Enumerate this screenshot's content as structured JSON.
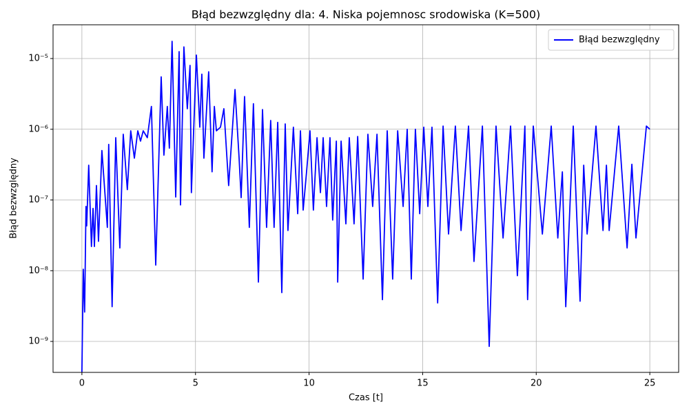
{
  "chart_data": {
    "type": "line",
    "title": "Błąd bezwzględny dla: 4. Niska pojemnosc srodowiska (K=500)",
    "xlabel": "Czas [t]",
    "ylabel": "Błąd bezwzględny",
    "log_y": true,
    "grid": true,
    "legend": "upper right",
    "xlim": [
      -1.27,
      26.27
    ],
    "ylim": [
      3.65e-10,
      3e-05
    ],
    "xticks": [
      0,
      5,
      10,
      15,
      20,
      25
    ],
    "yticks": [
      {
        "value": 1e-09,
        "label": "10⁻⁹"
      },
      {
        "value": 1e-08,
        "label": "10⁻⁸"
      },
      {
        "value": 1e-07,
        "label": "10⁻⁷"
      },
      {
        "value": 1e-06,
        "label": "10⁻⁶"
      },
      {
        "value": 1e-05,
        "label": "10⁻⁵"
      }
    ],
    "x": [
      0,
      0.06,
      0.12,
      0.18,
      0.21,
      0.3,
      0.42,
      0.49,
      0.55,
      0.64,
      0.73,
      0.88,
      1.12,
      1.18,
      1.33,
      1.49,
      1.67,
      1.82,
      2.0,
      2.15,
      2.31,
      2.46,
      2.58,
      2.7,
      2.88,
      3.06,
      3.25,
      3.49,
      3.61,
      3.76,
      3.85,
      3.97,
      4.13,
      4.28,
      4.34,
      4.49,
      4.64,
      4.76,
      4.82,
      5.04,
      5.19,
      5.28,
      5.37,
      5.58,
      5.73,
      5.83,
      5.92,
      6.1,
      6.25,
      6.46,
      6.74,
      6.92,
      7.01,
      7.16,
      7.37,
      7.55,
      7.77,
      7.95,
      8.13,
      8.31,
      8.46,
      8.62,
      8.8,
      8.95,
      9.07,
      9.31,
      9.5,
      9.62,
      9.74,
      9.89,
      10.04,
      10.19,
      10.35,
      10.5,
      10.62,
      10.77,
      10.92,
      11.04,
      11.2,
      11.26,
      11.41,
      11.62,
      11.77,
      11.98,
      12.14,
      12.38,
      12.59,
      12.8,
      12.99,
      13.23,
      13.44,
      13.68,
      13.9,
      14.14,
      14.32,
      14.5,
      14.68,
      14.87,
      15.05,
      15.23,
      15.41,
      15.66,
      15.9,
      16.14,
      16.44,
      16.69,
      17.02,
      17.26,
      17.63,
      17.93,
      18.23,
      18.54,
      18.87,
      19.17,
      19.5,
      19.62,
      19.87,
      20.27,
      20.66,
      20.95,
      21.15,
      21.3,
      21.63,
      21.93,
      22.09,
      22.24,
      22.63,
      22.94,
      23.09,
      23.21,
      23.63,
      24.0,
      24.21,
      24.39,
      24.85,
      25.0
    ],
    "series": [
      {
        "name": "Błąd bezwzględny",
        "color": "#0000ff",
        "values": [
          3.7e-10,
          1.05e-08,
          2.6e-09,
          8.1e-08,
          4.3e-08,
          3.1e-07,
          2.2e-08,
          7.6e-08,
          2.2e-08,
          1.6e-07,
          2.6e-08,
          5e-07,
          4.1e-08,
          6.1e-07,
          3.1e-09,
          7.6e-07,
          2.1e-08,
          8.5e-07,
          1.4e-07,
          9.5e-07,
          3.9e-07,
          9.5e-07,
          6.8e-07,
          9.5e-07,
          7.6e-07,
          2.1e-06,
          1.2e-08,
          5.5e-06,
          4.3e-07,
          2.1e-06,
          5.4e-07,
          1.75e-05,
          1.1e-07,
          1.25e-05,
          8.5e-08,
          1.46e-05,
          1.95e-06,
          8e-06,
          1.27e-07,
          1.12e-05,
          1.07e-06,
          6e-06,
          3.9e-07,
          6.5e-06,
          2.5e-07,
          2.1e-06,
          9.5e-07,
          1.07e-06,
          1.95e-06,
          1.6e-07,
          3.65e-06,
          3.9e-07,
          1.08e-07,
          2.9e-06,
          4.1e-08,
          2.3e-06,
          6.9e-09,
          1.9e-06,
          4.1e-08,
          1.33e-06,
          4.1e-08,
          1.25e-06,
          4.9e-09,
          1.19e-06,
          3.7e-08,
          1.07e-06,
          6.4e-08,
          9.5e-07,
          7.2e-08,
          2.5e-07,
          9.5e-07,
          7.2e-08,
          7.6e-07,
          1.27e-07,
          7.6e-07,
          8.1e-08,
          7.6e-07,
          5.2e-08,
          6.8e-07,
          6.9e-09,
          6.8e-07,
          4.6e-08,
          7.6e-07,
          4.6e-08,
          7.9e-07,
          7.6e-09,
          8.5e-07,
          8.1e-08,
          8.5e-07,
          3.9e-09,
          9.5e-07,
          7.6e-09,
          9.5e-07,
          8.1e-08,
          1e-06,
          7.6e-09,
          1e-06,
          6.4e-08,
          1.07e-06,
          8.1e-08,
          1.07e-06,
          3.5e-09,
          1.11e-06,
          3.3e-08,
          1.11e-06,
          3.7e-08,
          1.11e-06,
          1.35e-08,
          1.11e-06,
          8.5e-10,
          1.11e-06,
          2.9e-08,
          1.11e-06,
          8.5e-09,
          1.11e-06,
          3.9e-09,
          1.11e-06,
          3.3e-08,
          1.11e-06,
          2.9e-08,
          2.5e-07,
          3.1e-09,
          1.11e-06,
          3.7e-09,
          3.1e-07,
          3.3e-08,
          1.11e-06,
          3.7e-08,
          3.1e-07,
          3.7e-08,
          1.11e-06,
          2.1e-08,
          3.2e-07,
          2.9e-08,
          1.11e-06,
          1e-06
        ]
      }
    ]
  }
}
